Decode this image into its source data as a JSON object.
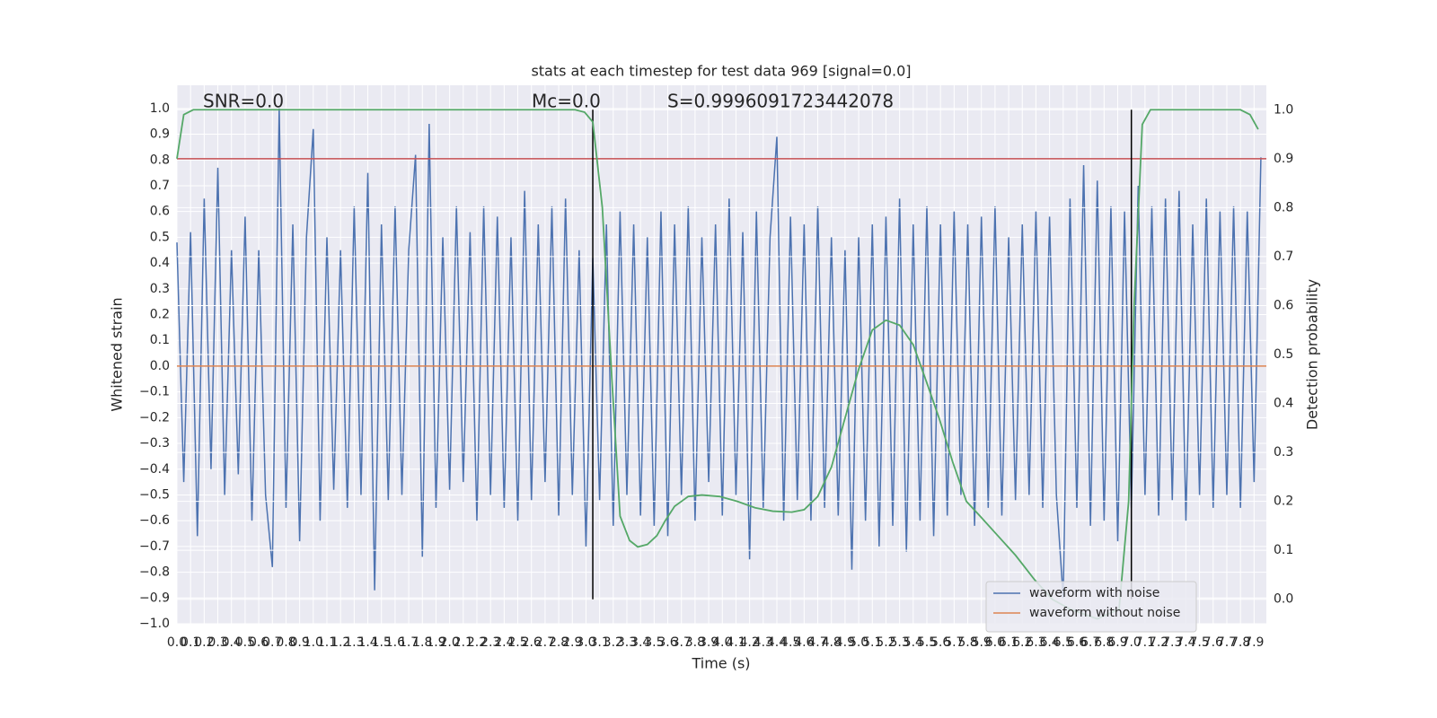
{
  "chart_data": {
    "type": "line",
    "title": "stats at each timestep for test data 969 [signal=0.0]",
    "annotations": [
      "SNR=0.0",
      "Mc=0.0",
      "S=0.9996091723442078"
    ],
    "xlabel": "Time (s)",
    "ylabel": "Whitened strain",
    "y2label": "Detection probability",
    "xlim": [
      0,
      7.99
    ],
    "ylim": [
      -1.0,
      1.09
    ],
    "y2lim": [
      -0.05,
      1.05
    ],
    "grid": true,
    "background": "#eaeaf2",
    "legend": "lower right",
    "xticks": [
      {
        "value": 0,
        "label": "0.0"
      },
      0.1,
      0.2,
      0.3,
      0.4,
      0.5,
      0.6,
      0.7,
      0.8,
      0.9,
      {
        "value": 1,
        "label": "1.0"
      },
      1.1,
      1.2,
      1.3,
      1.4,
      1.5,
      1.6,
      1.7,
      1.8,
      1.9,
      {
        "value": 2,
        "label": "2.0"
      },
      2.1,
      2.2,
      2.3,
      2.4,
      2.5,
      2.6,
      2.7,
      2.8,
      2.9,
      {
        "value": 3,
        "label": "3.0"
      },
      3.1,
      3.2,
      3.3,
      3.4,
      3.5,
      3.6,
      3.7,
      3.8,
      3.9,
      {
        "value": 4,
        "label": "4.0"
      },
      4.1,
      4.2,
      4.3,
      4.4,
      4.5,
      4.6,
      4.7,
      4.8,
      4.9,
      {
        "value": 5,
        "label": "5.0"
      },
      5.1,
      5.2,
      5.3,
      5.4,
      5.5,
      5.6,
      5.7,
      5.8,
      5.9,
      {
        "value": 6,
        "label": "6.0"
      },
      6.1,
      6.2,
      6.3,
      6.4,
      6.5,
      6.6,
      6.7,
      6.8,
      6.9,
      {
        "value": 7,
        "label": "7.0"
      },
      7.1,
      7.2,
      7.3,
      7.4,
      7.5,
      7.6,
      7.7,
      7.8,
      7.9
    ],
    "yticks": [
      {
        "value": -1.0,
        "label": "−1.0"
      },
      {
        "value": -0.9,
        "label": "−0.9"
      },
      {
        "value": -0.8,
        "label": "−0.8"
      },
      {
        "value": -0.7,
        "label": "−0.7"
      },
      {
        "value": -0.6,
        "label": "−0.6"
      },
      {
        "value": -0.5,
        "label": "−0.5"
      },
      {
        "value": -0.4,
        "label": "−0.4"
      },
      {
        "value": -0.3,
        "label": "−0.3"
      },
      {
        "value": -0.2,
        "label": "−0.2"
      },
      {
        "value": -0.1,
        "label": "−0.1"
      },
      {
        "value": 0,
        "label": "0.0"
      },
      0.1,
      0.2,
      0.3,
      0.4,
      0.5,
      0.6,
      0.7,
      0.8,
      0.9,
      {
        "value": 1,
        "label": "1.0"
      }
    ],
    "y2ticks": [
      {
        "value": 0,
        "label": "0.0"
      },
      0.1,
      0.2,
      0.3,
      0.4,
      0.5,
      0.6,
      0.7,
      0.8,
      0.9,
      {
        "value": 1,
        "label": "1.0"
      }
    ],
    "series": [
      {
        "name": "waveform with noise",
        "color": "#4c72b0",
        "x": [
          0,
          0.05,
          0.1,
          0.15,
          0.2,
          0.25,
          0.3,
          0.35,
          0.4,
          0.45,
          0.5,
          0.55,
          0.6,
          0.65,
          0.7,
          0.75,
          0.8,
          0.85,
          0.9,
          0.95,
          1,
          1.05,
          1.1,
          1.15,
          1.2,
          1.25,
          1.3,
          1.35,
          1.4,
          1.45,
          1.5,
          1.55,
          1.6,
          1.65,
          1.7,
          1.75,
          1.8,
          1.85,
          1.9,
          1.95,
          2,
          2.05,
          2.1,
          2.15,
          2.2,
          2.25,
          2.3,
          2.35,
          2.4,
          2.45,
          2.5,
          2.55,
          2.6,
          2.65,
          2.7,
          2.75,
          2.8,
          2.85,
          2.9,
          2.95,
          3,
          3.05,
          3.1,
          3.15,
          3.2,
          3.25,
          3.3,
          3.35,
          3.4,
          3.45,
          3.5,
          3.55,
          3.6,
          3.65,
          3.7,
          3.75,
          3.8,
          3.85,
          3.9,
          3.95,
          4,
          4.05,
          4.1,
          4.15,
          4.2,
          4.25,
          4.3,
          4.35,
          4.4,
          4.45,
          4.5,
          4.55,
          4.6,
          4.65,
          4.7,
          4.75,
          4.8,
          4.85,
          4.9,
          4.95,
          5,
          5.05,
          5.1,
          5.15,
          5.2,
          5.25,
          5.3,
          5.35,
          5.4,
          5.45,
          5.5,
          5.55,
          5.6,
          5.65,
          5.7,
          5.75,
          5.8,
          5.85,
          5.9,
          5.95,
          6,
          6.05,
          6.1,
          6.15,
          6.2,
          6.25,
          6.3,
          6.35,
          6.4,
          6.45,
          6.5,
          6.55,
          6.6,
          6.65,
          6.7,
          6.75,
          6.8,
          6.85,
          6.9,
          6.95,
          7,
          7.05,
          7.1,
          7.15,
          7.2,
          7.25,
          7.3,
          7.35,
          7.4,
          7.45,
          7.5,
          7.55,
          7.6,
          7.65,
          7.7,
          7.75,
          7.8,
          7.85,
          7.9,
          7.95
        ],
        "values": [
          0.48,
          -0.45,
          0.52,
          -0.66,
          0.65,
          -0.4,
          0.77,
          -0.5,
          0.45,
          -0.42,
          0.58,
          -0.6,
          0.45,
          -0.5,
          -0.78,
          1.0,
          -0.55,
          0.55,
          -0.68,
          0.5,
          0.92,
          -0.6,
          0.5,
          -0.48,
          0.45,
          -0.55,
          0.62,
          -0.5,
          0.75,
          -0.87,
          0.55,
          -0.52,
          0.62,
          -0.5,
          0.45,
          0.82,
          -0.74,
          0.94,
          -0.55,
          0.5,
          -0.48,
          0.62,
          -0.45,
          0.52,
          -0.6,
          0.62,
          -0.5,
          0.58,
          -0.55,
          0.5,
          -0.6,
          0.68,
          -0.52,
          0.55,
          -0.45,
          0.62,
          -0.58,
          0.65,
          -0.5,
          0.45,
          -0.7,
          0.42,
          -0.52,
          0.55,
          -0.62,
          0.6,
          -0.5,
          0.55,
          -0.58,
          0.5,
          -0.62,
          0.6,
          -0.66,
          0.55,
          -0.5,
          0.62,
          -0.6,
          0.5,
          -0.45,
          0.55,
          -0.58,
          0.65,
          -0.5,
          0.52,
          -0.75,
          0.6,
          -0.55,
          0.5,
          0.89,
          -0.6,
          0.58,
          -0.52,
          0.55,
          -0.6,
          0.62,
          -0.55,
          0.5,
          -0.58,
          0.45,
          -0.79,
          0.5,
          -0.6,
          0.55,
          -0.7,
          0.58,
          -0.62,
          0.65,
          -0.72,
          0.55,
          -0.6,
          0.62,
          -0.66,
          0.55,
          -0.58,
          0.6,
          -0.5,
          0.55,
          -0.62,
          0.58,
          -0.55,
          0.62,
          -0.58,
          0.5,
          -0.52,
          0.55,
          -0.5,
          0.6,
          -0.55,
          0.58,
          -0.5,
          -0.9,
          0.65,
          -0.55,
          0.78,
          -0.62,
          0.72,
          -0.6,
          0.62,
          -0.68,
          0.6,
          -0.55,
          0.7,
          -0.5,
          0.62,
          -0.58,
          0.65,
          -0.52,
          0.68,
          -0.6,
          0.55,
          -0.5,
          0.65,
          -0.55,
          0.6,
          -0.5,
          0.62,
          -0.55,
          0.6,
          -0.45,
          0.81
        ]
      },
      {
        "name": "waveform without noise",
        "color": "#dd8452",
        "x": [
          0,
          7.99
        ],
        "values": [
          0,
          0
        ]
      }
    ],
    "probability": {
      "color": "#55a868",
      "axis": "y2",
      "x": [
        0,
        0.05,
        0.12,
        2.92,
        2.99,
        3.05,
        3.12,
        3.19,
        3.25,
        3.32,
        3.38,
        3.45,
        3.52,
        3.58,
        3.65,
        3.75,
        3.85,
        3.98,
        4.11,
        4.24,
        4.37,
        4.51,
        4.6,
        4.7,
        4.8,
        4.9,
        5.0,
        5.1,
        5.2,
        5.3,
        5.4,
        5.49,
        5.59,
        5.69,
        5.79,
        5.89,
        6.02,
        6.15,
        6.29,
        6.42,
        6.55,
        6.75,
        6.91,
        6.98,
        7.02,
        7.08,
        7.14,
        7.8,
        7.87,
        7.93
      ],
      "values": [
        0.9,
        0.99,
        1.0,
        1.0,
        0.995,
        0.975,
        0.8,
        0.45,
        0.17,
        0.12,
        0.107,
        0.112,
        0.13,
        0.16,
        0.19,
        0.21,
        0.213,
        0.21,
        0.2,
        0.187,
        0.18,
        0.178,
        0.183,
        0.21,
        0.27,
        0.37,
        0.47,
        0.55,
        0.57,
        0.56,
        0.52,
        0.45,
        0.37,
        0.28,
        0.2,
        0.17,
        0.13,
        0.09,
        0.04,
        0.0,
        -0.02,
        -0.04,
        -0.02,
        0.2,
        0.6,
        0.97,
        1.0,
        1.0,
        0.99,
        0.96
      ]
    },
    "threshold": {
      "y": 0.9,
      "axis": "y2",
      "color": "#c44e52"
    },
    "vlines": {
      "x": [
        3.05,
        7.0
      ],
      "y2range": [
        0,
        1
      ],
      "color": "#000000"
    }
  }
}
